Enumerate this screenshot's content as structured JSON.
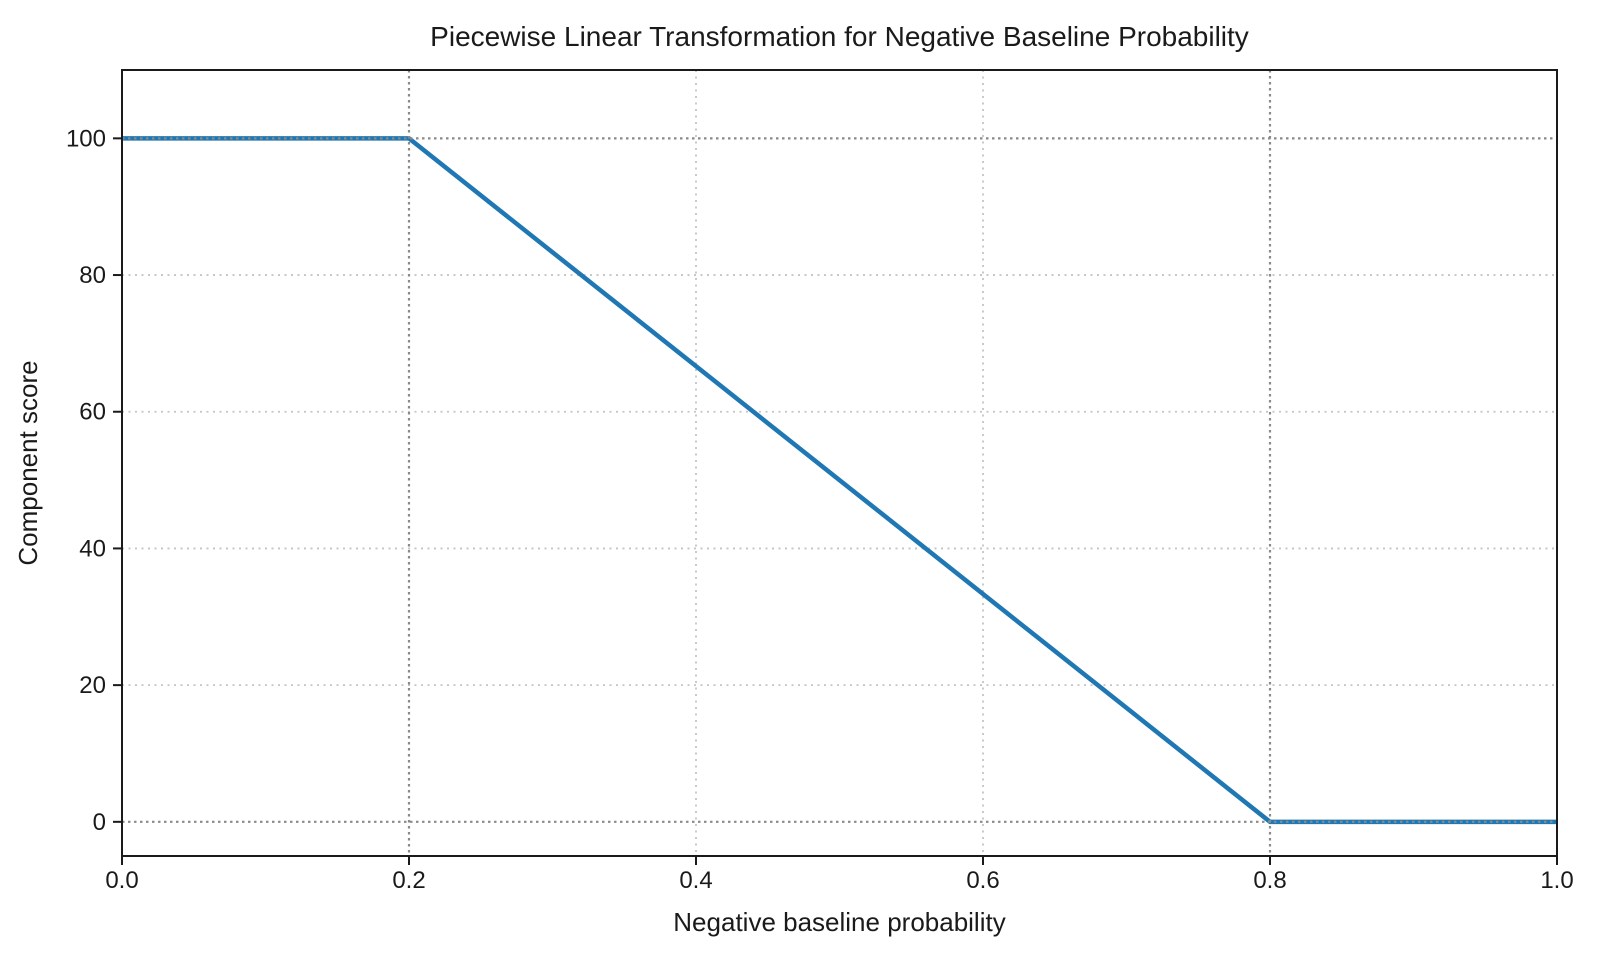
{
  "chart_data": {
    "type": "line",
    "title": "Piecewise Linear Transformation for Negative Baseline Probability",
    "xlabel": "Negative baseline probability",
    "ylabel": "Component score",
    "xlim": [
      0,
      1
    ],
    "ylim": [
      -5,
      110
    ],
    "xticks": {
      "values": [
        0,
        0.2,
        0.4,
        0.6,
        0.8,
        1.0
      ],
      "labels": [
        "0.0",
        "0.2",
        "0.4",
        "0.6",
        "0.8",
        "1.0"
      ]
    },
    "yticks": {
      "values": [
        0,
        20,
        40,
        60,
        80,
        100
      ],
      "labels": [
        "0",
        "20",
        "40",
        "60",
        "80",
        "100"
      ]
    },
    "grid": {
      "visible": true,
      "style": "dotted"
    },
    "legend": {
      "visible": false
    },
    "series": [
      {
        "name": "component_score",
        "x": [
          0,
          0.2,
          0.8,
          1.0
        ],
        "y": [
          100,
          100,
          0,
          0
        ]
      }
    ],
    "reference_lines": {
      "vertical": [
        0.2,
        0.8
      ],
      "horizontal": [
        0,
        100
      ]
    },
    "colors": {
      "line": "#1f77b4",
      "grid": "#c4c4c4",
      "reference": "#8a8a8a",
      "spine": "#1a1a1a",
      "text": "#1a1a1a"
    }
  }
}
